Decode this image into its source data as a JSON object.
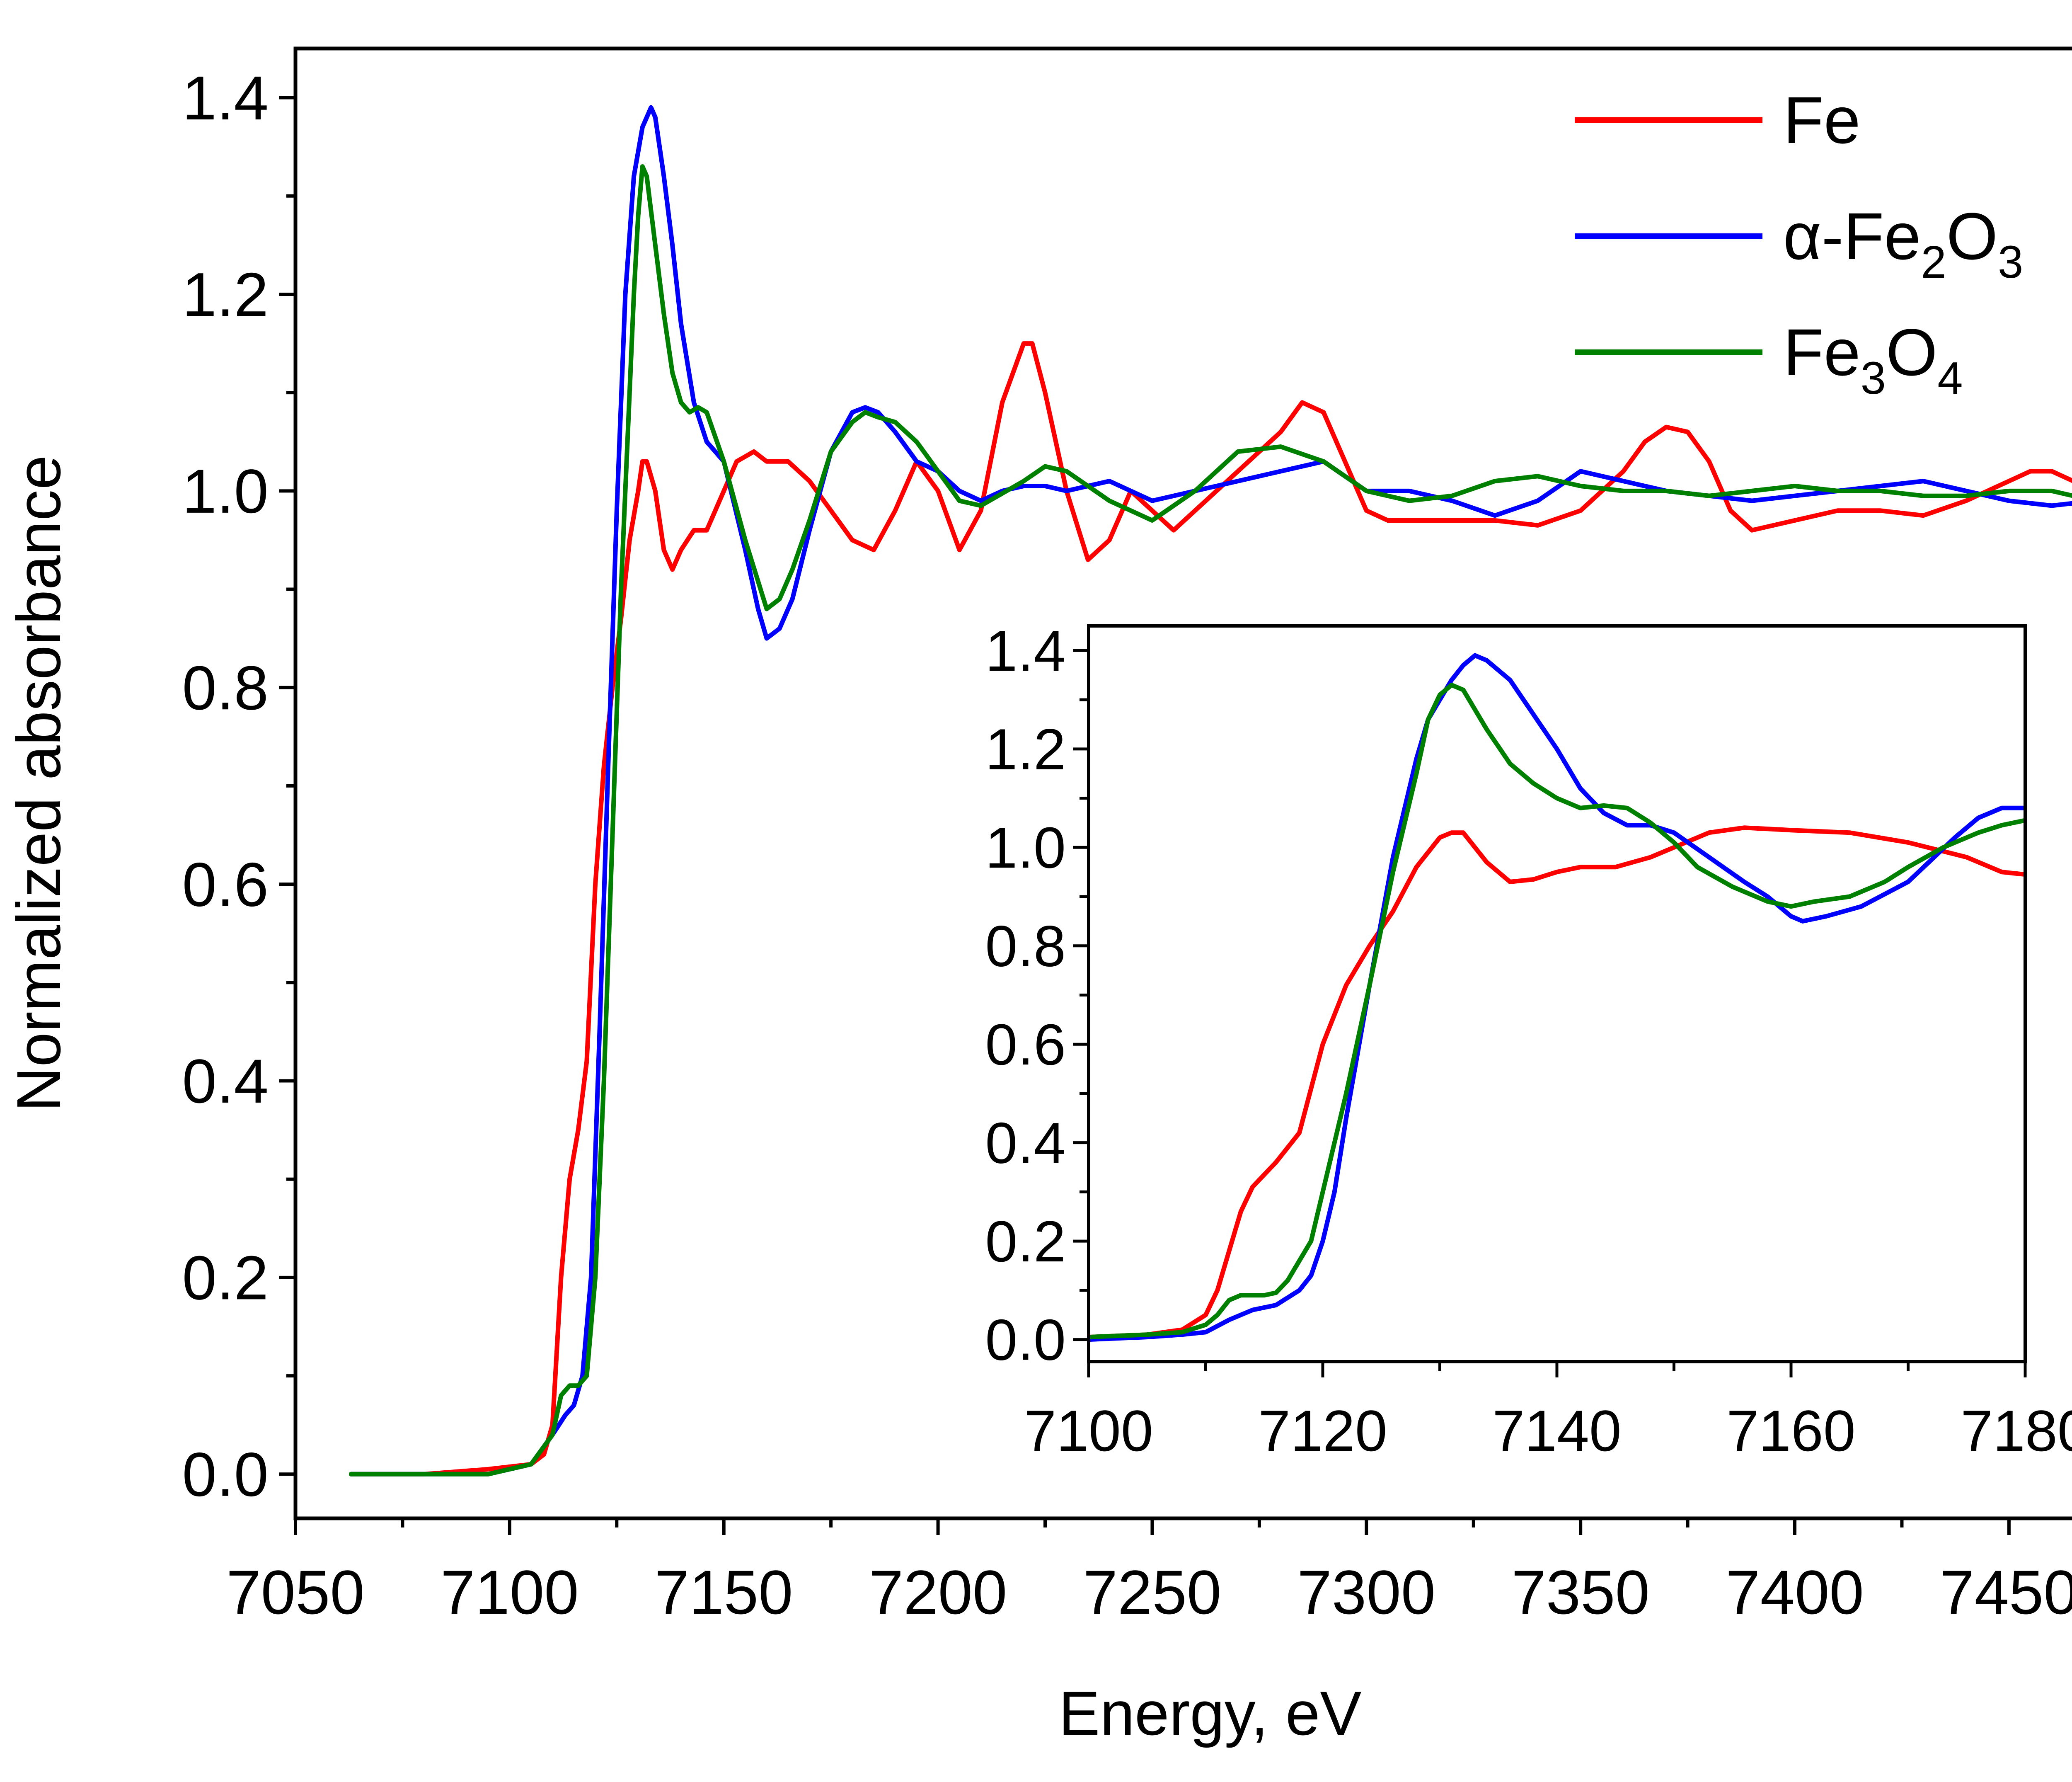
{
  "chart_data": [
    {
      "type": "line",
      "id": "main",
      "xlabel": "Energy, eV",
      "ylabel": "Normalized absorbance",
      "xlim": [
        7050,
        7477
      ],
      "ylim": [
        -0.045,
        1.45
      ],
      "xticks": [
        7050,
        7100,
        7150,
        7200,
        7250,
        7300,
        7350,
        7400,
        7450
      ],
      "yticks": [
        0.0,
        0.2,
        0.4,
        0.6,
        0.8,
        1.0,
        1.2,
        1.4
      ],
      "xtick_labels": [
        "7050",
        "7100",
        "7150",
        "7200",
        "7250",
        "7300",
        "7350",
        "7400",
        "7450"
      ],
      "ytick_labels": [
        "0.0",
        "0.2",
        "0.4",
        "0.6",
        "0.8",
        "1.0",
        "1.2",
        "1.4"
      ],
      "legend_position": "top-right",
      "series": [
        {
          "name": "Fe",
          "color": "#ff0000",
          "x": [
            7063,
            7080,
            7095,
            7105,
            7108,
            7110,
            7112,
            7114,
            7116,
            7118,
            7120,
            7122,
            7124,
            7126,
            7128,
            7130,
            7131,
            7132,
            7134,
            7136,
            7138,
            7140,
            7143,
            7146,
            7150,
            7153,
            7157,
            7160,
            7165,
            7170,
            7175,
            7180,
            7185,
            7190,
            7195,
            7200,
            7205,
            7210,
            7215,
            7220,
            7222,
            7225,
            7230,
            7235,
            7240,
            7245,
            7250,
            7255,
            7260,
            7265,
            7270,
            7275,
            7280,
            7285,
            7290,
            7295,
            7300,
            7305,
            7310,
            7320,
            7330,
            7340,
            7350,
            7360,
            7365,
            7370,
            7375,
            7380,
            7385,
            7390,
            7400,
            7410,
            7420,
            7430,
            7440,
            7450,
            7455,
            7460,
            7465,
            7470
          ],
          "y": [
            0.0,
            0.0,
            0.005,
            0.01,
            0.02,
            0.05,
            0.2,
            0.3,
            0.35,
            0.42,
            0.6,
            0.72,
            0.8,
            0.87,
            0.95,
            1.0,
            1.03,
            1.03,
            1.0,
            0.94,
            0.92,
            0.94,
            0.96,
            0.96,
            1.0,
            1.03,
            1.04,
            1.03,
            1.03,
            1.01,
            0.98,
            0.95,
            0.94,
            0.98,
            1.03,
            1.0,
            0.94,
            0.98,
            1.09,
            1.15,
            1.15,
            1.1,
            1.0,
            0.93,
            0.95,
            1.0,
            0.98,
            0.96,
            0.98,
            1.0,
            1.02,
            1.04,
            1.06,
            1.09,
            1.08,
            1.03,
            0.98,
            0.97,
            0.97,
            0.97,
            0.97,
            0.965,
            0.98,
            1.02,
            1.05,
            1.065,
            1.06,
            1.03,
            0.98,
            0.96,
            0.97,
            0.98,
            0.98,
            0.975,
            0.99,
            1.01,
            1.02,
            1.02,
            1.01,
            1.01
          ]
        },
        {
          "name": "α-Fe₂O₃",
          "color": "#0000ff",
          "x": [
            7063,
            7080,
            7095,
            7100,
            7105,
            7110,
            7113,
            7115,
            7117,
            7119,
            7121,
            7123,
            7125,
            7127,
            7129,
            7131,
            7132,
            7133,
            7134,
            7136,
            7138,
            7140,
            7143,
            7146,
            7150,
            7155,
            7158,
            7160,
            7163,
            7166,
            7170,
            7175,
            7180,
            7183,
            7186,
            7190,
            7195,
            7200,
            7205,
            7210,
            7215,
            7220,
            7225,
            7230,
            7240,
            7250,
            7260,
            7270,
            7280,
            7290,
            7300,
            7310,
            7320,
            7330,
            7340,
            7350,
            7360,
            7370,
            7380,
            7390,
            7400,
            7410,
            7420,
            7430,
            7440,
            7450,
            7460,
            7470
          ],
          "y": [
            0.0,
            0.0,
            0.0,
            0.005,
            0.01,
            0.04,
            0.06,
            0.07,
            0.1,
            0.2,
            0.45,
            0.72,
            0.98,
            1.2,
            1.32,
            1.37,
            1.38,
            1.39,
            1.38,
            1.32,
            1.25,
            1.17,
            1.09,
            1.05,
            1.03,
            0.94,
            0.88,
            0.85,
            0.86,
            0.89,
            0.96,
            1.04,
            1.08,
            1.085,
            1.08,
            1.06,
            1.03,
            1.02,
            1.0,
            0.99,
            1.0,
            1.005,
            1.005,
            1.0,
            1.01,
            0.99,
            1.0,
            1.01,
            1.02,
            1.03,
            1.0,
            1.0,
            0.99,
            0.975,
            0.99,
            1.02,
            1.01,
            1.0,
            0.995,
            0.99,
            0.995,
            1.0,
            1.005,
            1.01,
            1.0,
            0.99,
            0.985,
            0.99
          ]
        },
        {
          "name": "Fe₃O₄",
          "color": "#008000",
          "x": [
            7063,
            7080,
            7095,
            7100,
            7105,
            7110,
            7112,
            7114,
            7116,
            7118,
            7120,
            7122,
            7124,
            7126,
            7128,
            7129,
            7130,
            7131,
            7132,
            7134,
            7136,
            7138,
            7140,
            7142,
            7144,
            7146,
            7150,
            7155,
            7160,
            7163,
            7166,
            7170,
            7175,
            7180,
            7183,
            7186,
            7190,
            7195,
            7200,
            7205,
            7210,
            7220,
            7225,
            7230,
            7240,
            7250,
            7260,
            7270,
            7280,
            7290,
            7300,
            7310,
            7320,
            7330,
            7340,
            7350,
            7360,
            7370,
            7380,
            7390,
            7400,
            7410,
            7420,
            7430,
            7440,
            7450,
            7460,
            7470
          ],
          "y": [
            0.0,
            0.0,
            0.0,
            0.005,
            0.01,
            0.04,
            0.08,
            0.09,
            0.09,
            0.1,
            0.2,
            0.4,
            0.65,
            0.9,
            1.1,
            1.2,
            1.28,
            1.33,
            1.32,
            1.25,
            1.18,
            1.12,
            1.09,
            1.08,
            1.085,
            1.08,
            1.03,
            0.95,
            0.88,
            0.89,
            0.92,
            0.97,
            1.04,
            1.07,
            1.08,
            1.075,
            1.07,
            1.05,
            1.02,
            0.99,
            0.985,
            1.01,
            1.025,
            1.02,
            0.99,
            0.97,
            1.0,
            1.04,
            1.045,
            1.03,
            1.0,
            0.99,
            0.995,
            1.01,
            1.015,
            1.005,
            1.0,
            1.0,
            0.995,
            1.0,
            1.005,
            1.0,
            1.0,
            0.995,
            0.995,
            1.0,
            1.0,
            0.99
          ]
        }
      ]
    },
    {
      "type": "line",
      "id": "inset",
      "xlim": [
        7100,
        7180
      ],
      "ylim": [
        -0.045,
        1.45
      ],
      "xticks": [
        7100,
        7120,
        7140,
        7160,
        7180
      ],
      "yticks": [
        0.0,
        0.2,
        0.4,
        0.6,
        0.8,
        1.0,
        1.2,
        1.4
      ],
      "xtick_labels": [
        "7100",
        "7120",
        "7140",
        "7160",
        "7180"
      ],
      "ytick_labels": [
        "0.0",
        "0.2",
        "0.4",
        "0.6",
        "0.8",
        "1.0",
        "1.2",
        "1.4"
      ],
      "series": [
        {
          "name": "Fe",
          "color": "#ff0000",
          "x": [
            7100,
            7105,
            7108,
            7110,
            7111,
            7112,
            7113,
            7114,
            7116,
            7118,
            7120,
            7122,
            7124,
            7126,
            7128,
            7130,
            7131,
            7132,
            7134,
            7136,
            7138,
            7140,
            7142,
            7145,
            7148,
            7150,
            7153,
            7156,
            7160,
            7165,
            7170,
            7175,
            7178,
            7180
          ],
          "y": [
            0.005,
            0.01,
            0.02,
            0.05,
            0.1,
            0.18,
            0.26,
            0.31,
            0.36,
            0.42,
            0.6,
            0.72,
            0.8,
            0.87,
            0.96,
            1.02,
            1.03,
            1.03,
            0.97,
            0.93,
            0.935,
            0.95,
            0.96,
            0.96,
            0.98,
            1.0,
            1.03,
            1.04,
            1.035,
            1.03,
            1.01,
            0.98,
            0.95,
            0.945
          ]
        },
        {
          "name": "α-Fe₂O₃",
          "color": "#0000ff",
          "x": [
            7100,
            7105,
            7108,
            7110,
            7112,
            7114,
            7116,
            7118,
            7119,
            7120,
            7121,
            7122,
            7124,
            7126,
            7128,
            7129,
            7130,
            7131,
            7132,
            7133,
            7134,
            7136,
            7138,
            7140,
            7142,
            7144,
            7146,
            7148,
            7150,
            7153,
            7156,
            7158,
            7160,
            7161,
            7163,
            7166,
            7170,
            7174,
            7176,
            7178,
            7180
          ],
          "y": [
            0.0,
            0.005,
            0.01,
            0.015,
            0.04,
            0.06,
            0.07,
            0.1,
            0.13,
            0.2,
            0.3,
            0.45,
            0.72,
            0.98,
            1.18,
            1.26,
            1.3,
            1.34,
            1.37,
            1.39,
            1.38,
            1.34,
            1.27,
            1.2,
            1.12,
            1.07,
            1.045,
            1.045,
            1.03,
            0.98,
            0.93,
            0.9,
            0.86,
            0.85,
            0.86,
            0.88,
            0.93,
            1.02,
            1.06,
            1.08,
            1.08
          ]
        },
        {
          "name": "Fe₃O₄",
          "color": "#008000",
          "x": [
            7100,
            7105,
            7108,
            7110,
            7111,
            7112,
            7113,
            7114,
            7115,
            7116,
            7117,
            7118,
            7119,
            7120,
            7122,
            7124,
            7126,
            7128,
            7129,
            7130,
            7131,
            7132,
            7134,
            7136,
            7138,
            7140,
            7142,
            7144,
            7146,
            7148,
            7150,
            7152,
            7155,
            7158,
            7160,
            7162,
            7165,
            7168,
            7170,
            7173,
            7176,
            7178,
            7180
          ],
          "y": [
            0.005,
            0.01,
            0.015,
            0.03,
            0.05,
            0.08,
            0.09,
            0.09,
            0.09,
            0.095,
            0.12,
            0.16,
            0.2,
            0.3,
            0.5,
            0.72,
            0.95,
            1.15,
            1.26,
            1.31,
            1.33,
            1.32,
            1.24,
            1.17,
            1.13,
            1.1,
            1.08,
            1.085,
            1.08,
            1.05,
            1.01,
            0.96,
            0.92,
            0.89,
            0.88,
            0.89,
            0.9,
            0.93,
            0.96,
            1.0,
            1.03,
            1.045,
            1.055
          ]
        }
      ]
    }
  ]
}
